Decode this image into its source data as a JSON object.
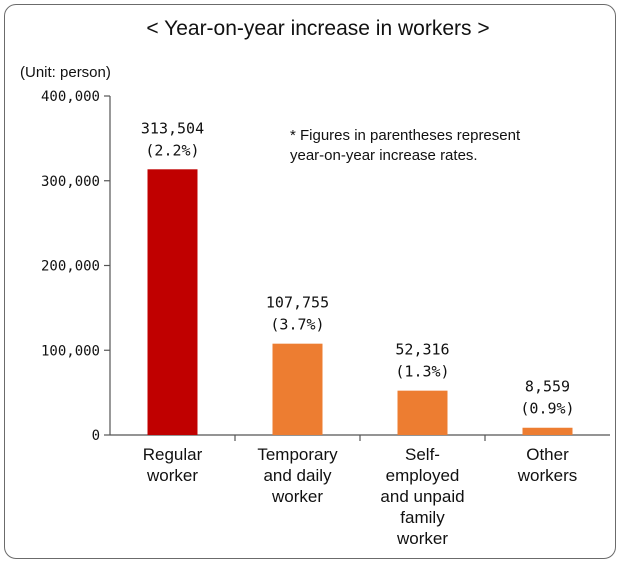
{
  "chart_data": {
    "type": "bar",
    "title": "< Year-on-year increase in workers >",
    "unit_label": "(Unit: person)",
    "note": [
      "* Figures in parentheses represent",
      "year-on-year increase rates."
    ],
    "categories": [
      [
        "Regular",
        "worker"
      ],
      [
        "Temporary",
        "and daily",
        "worker"
      ],
      [
        "Self-",
        "employed",
        "and unpaid",
        "family",
        "worker"
      ],
      [
        "Other",
        "workers"
      ]
    ],
    "values": [
      313504,
      107755,
      52316,
      8559
    ],
    "value_labels": [
      "313,504",
      "107,755",
      "52,316",
      "8,559"
    ],
    "rate_labels": [
      "(2.2%)",
      "(3.7%)",
      "(1.3%)",
      "(0.9%)"
    ],
    "bar_colors": [
      "#c00000",
      "#ed7d31",
      "#ed7d31",
      "#ed7d31"
    ],
    "ylim": [
      0,
      400000
    ],
    "yticks": [
      0,
      100000,
      200000,
      300000,
      400000
    ],
    "ytick_labels": [
      "0",
      "100,000",
      "200,000",
      "300,000",
      "400,000"
    ],
    "grid": false,
    "xlabel": "",
    "ylabel": ""
  }
}
